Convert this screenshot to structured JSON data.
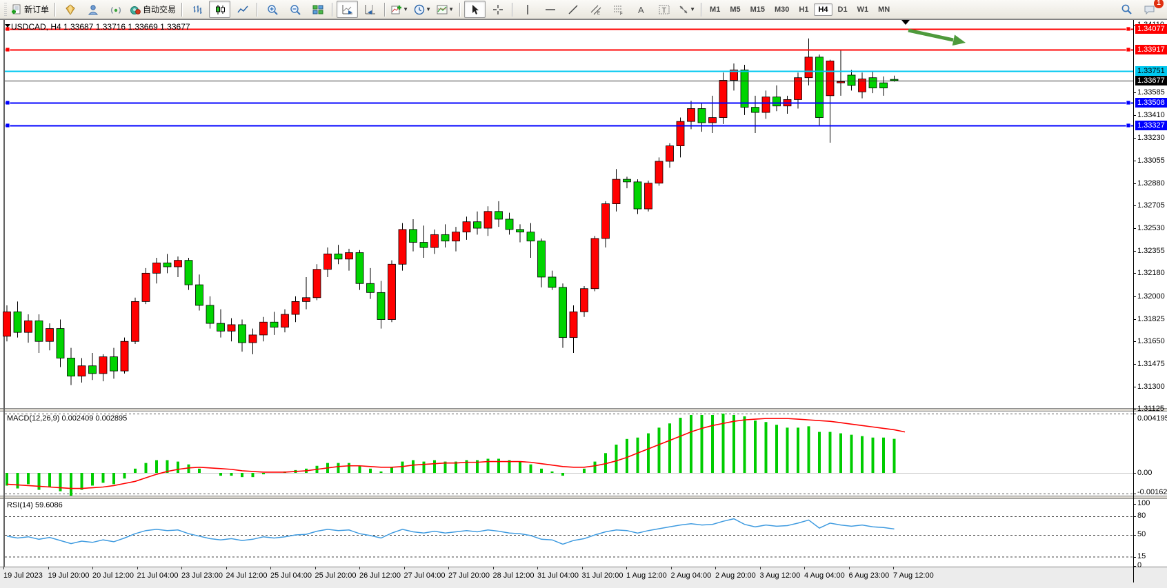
{
  "toolbar": {
    "new_order_label": "新订单",
    "autotrading_label": "自动交易",
    "timeframes": [
      "M1",
      "M5",
      "M15",
      "M30",
      "H1",
      "H4",
      "D1",
      "W1",
      "MN"
    ],
    "active_timeframe": "H4",
    "notification_count": "1"
  },
  "chart": {
    "title": "USDCAD, H4  1.33687 1.33716 1.33669 1.33677",
    "symbol": "USDCAD",
    "period": "H4",
    "open": "1.33687",
    "high": "1.33716",
    "low": "1.33669",
    "close": "1.33677"
  },
  "indicators": {
    "macd_label": "MACD(12,26,9) 0.002409 0.002895",
    "macd_max": "0.004195",
    "macd_zero": "0.00",
    "macd_min": "-0.001625",
    "rsi_label": "RSI(14) 59.6086"
  },
  "colors": {
    "up_candle": "#ff0000",
    "down_candle": "#00d400",
    "wick": "#000000",
    "resistance_line": "#ff0000",
    "cyan_line": "#00c8f0",
    "support_line": "#0000ff",
    "current_price_badge": "#000000",
    "macd_histogram": "#00cc00",
    "macd_signal": "#ff0000",
    "rsi_line": "#3f9be0",
    "annotation_arrow": "#4e9a3c"
  },
  "chart_data": {
    "type": "candlestick",
    "title": "USDCAD H4",
    "price_range": [
      1.3113,
      1.3415
    ],
    "price_ticks": [
      1.3411,
      1.33585,
      1.3341,
      1.3323,
      1.33055,
      1.3288,
      1.32705,
      1.3253,
      1.32355,
      1.3218,
      1.32,
      1.31825,
      1.3165,
      1.31475,
      1.313,
      1.31125
    ],
    "horizontal_lines": [
      {
        "price": 1.34077,
        "color": "#ff0000",
        "badge_fg": "#ffffff",
        "handles": true
      },
      {
        "price": 1.33917,
        "color": "#ff0000",
        "badge_fg": "#ffffff",
        "handles": true
      },
      {
        "price": 1.33751,
        "color": "#00c8f0",
        "badge_fg": "#000000",
        "handles": false
      },
      {
        "price": 1.33508,
        "color": "#0000ff",
        "badge_fg": "#ffffff",
        "handles": true
      },
      {
        "price": 1.33327,
        "color": "#0000ff",
        "badge_fg": "#ffffff",
        "handles": true
      }
    ],
    "current_price": 1.33677,
    "bars": [
      [
        1.3169,
        1.3193,
        1.3165,
        1.3188
      ],
      [
        1.3188,
        1.3196,
        1.3168,
        1.3172
      ],
      [
        1.3172,
        1.3186,
        1.3164,
        1.3181
      ],
      [
        1.3181,
        1.3186,
        1.3156,
        1.3165
      ],
      [
        1.3165,
        1.3179,
        1.3158,
        1.3175
      ],
      [
        1.3175,
        1.3182,
        1.3145,
        1.3152
      ],
      [
        1.3152,
        1.316,
        1.3131,
        1.3138
      ],
      [
        1.3138,
        1.3152,
        1.3133,
        1.3146
      ],
      [
        1.3146,
        1.3156,
        1.3135,
        1.314
      ],
      [
        1.314,
        1.3155,
        1.3134,
        1.3153
      ],
      [
        1.3153,
        1.316,
        1.3136,
        1.3142
      ],
      [
        1.3142,
        1.3168,
        1.314,
        1.3165
      ],
      [
        1.3165,
        1.3199,
        1.3163,
        1.3196
      ],
      [
        1.3196,
        1.3222,
        1.3194,
        1.3218
      ],
      [
        1.3218,
        1.323,
        1.321,
        1.3226
      ],
      [
        1.3226,
        1.3233,
        1.3218,
        1.3223
      ],
      [
        1.3223,
        1.3231,
        1.3215,
        1.3228
      ],
      [
        1.3228,
        1.323,
        1.3205,
        1.3209
      ],
      [
        1.3209,
        1.3217,
        1.3189,
        1.3193
      ],
      [
        1.3193,
        1.32,
        1.3175,
        1.3179
      ],
      [
        1.3179,
        1.319,
        1.3168,
        1.3173
      ],
      [
        1.3173,
        1.3183,
        1.3165,
        1.3178
      ],
      [
        1.3178,
        1.3182,
        1.3157,
        1.3164
      ],
      [
        1.3164,
        1.3175,
        1.3155,
        1.317
      ],
      [
        1.317,
        1.3184,
        1.3165,
        1.318
      ],
      [
        1.318,
        1.3188,
        1.317,
        1.3176
      ],
      [
        1.3176,
        1.319,
        1.3172,
        1.3186
      ],
      [
        1.3186,
        1.32,
        1.318,
        1.3196
      ],
      [
        1.3196,
        1.3215,
        1.319,
        1.3199
      ],
      [
        1.3199,
        1.3225,
        1.3197,
        1.3221
      ],
      [
        1.3221,
        1.3238,
        1.3215,
        1.3233
      ],
      [
        1.3233,
        1.324,
        1.3225,
        1.3229
      ],
      [
        1.3229,
        1.3237,
        1.322,
        1.3234
      ],
      [
        1.3234,
        1.3236,
        1.3205,
        1.321
      ],
      [
        1.321,
        1.3222,
        1.3198,
        1.3203
      ],
      [
        1.3203,
        1.3212,
        1.3175,
        1.3182
      ],
      [
        1.3182,
        1.3228,
        1.318,
        1.3225
      ],
      [
        1.3225,
        1.3257,
        1.322,
        1.3252
      ],
      [
        1.3252,
        1.326,
        1.3235,
        1.3242
      ],
      [
        1.3242,
        1.3255,
        1.323,
        1.3238
      ],
      [
        1.3238,
        1.3252,
        1.3233,
        1.3248
      ],
      [
        1.3248,
        1.3256,
        1.3238,
        1.3243
      ],
      [
        1.3243,
        1.3254,
        1.3235,
        1.325
      ],
      [
        1.325,
        1.3262,
        1.3244,
        1.3258
      ],
      [
        1.3258,
        1.3266,
        1.3248,
        1.3253
      ],
      [
        1.3253,
        1.327,
        1.3247,
        1.3266
      ],
      [
        1.3266,
        1.3274,
        1.3254,
        1.326
      ],
      [
        1.326,
        1.3265,
        1.3248,
        1.3252
      ],
      [
        1.3252,
        1.3256,
        1.3242,
        1.325
      ],
      [
        1.325,
        1.3257,
        1.323,
        1.3243
      ],
      [
        1.3243,
        1.3245,
        1.3207,
        1.3215
      ],
      [
        1.3215,
        1.322,
        1.3205,
        1.3207
      ],
      [
        1.3207,
        1.321,
        1.316,
        1.3168
      ],
      [
        1.3168,
        1.3193,
        1.3156,
        1.3188
      ],
      [
        1.3188,
        1.3208,
        1.3184,
        1.3206
      ],
      [
        1.3206,
        1.3247,
        1.3204,
        1.3245
      ],
      [
        1.3245,
        1.3274,
        1.3238,
        1.3272
      ],
      [
        1.3272,
        1.3299,
        1.3266,
        1.3291
      ],
      [
        1.3291,
        1.3293,
        1.3284,
        1.3289
      ],
      [
        1.3289,
        1.3291,
        1.3264,
        1.3268
      ],
      [
        1.3268,
        1.329,
        1.3266,
        1.3288
      ],
      [
        1.3288,
        1.3308,
        1.3286,
        1.3305
      ],
      [
        1.3305,
        1.3319,
        1.33,
        1.3317
      ],
      [
        1.3317,
        1.3339,
        1.3308,
        1.3336
      ],
      [
        1.3336,
        1.3352,
        1.333,
        1.3346
      ],
      [
        1.3346,
        1.335,
        1.3328,
        1.3335
      ],
      [
        1.3335,
        1.3356,
        1.3327,
        1.3339
      ],
      [
        1.3339,
        1.3374,
        1.3334,
        1.3368
      ],
      [
        1.3368,
        1.3381,
        1.336,
        1.3376
      ],
      [
        1.3376,
        1.338,
        1.3341,
        1.3347
      ],
      [
        1.3347,
        1.3356,
        1.3327,
        1.3343
      ],
      [
        1.3343,
        1.336,
        1.3338,
        1.3355
      ],
      [
        1.3355,
        1.3364,
        1.3344,
        1.3348
      ],
      [
        1.3348,
        1.3356,
        1.3342,
        1.3353
      ],
      [
        1.3353,
        1.3374,
        1.3346,
        1.337
      ],
      [
        1.337,
        1.34005,
        1.3364,
        1.3386
      ],
      [
        1.3386,
        1.3388,
        1.3333,
        1.3339
      ],
      [
        1.3356,
        1.3384,
        1.33195,
        1.3383
      ],
      [
        1.3366,
        1.3392,
        1.3356,
        1.3367
      ],
      [
        1.3372,
        1.3376,
        1.336,
        1.3364
      ],
      [
        1.3359,
        1.3374,
        1.3354,
        1.3369
      ],
      [
        1.337,
        1.3375,
        1.3358,
        1.3362
      ],
      [
        1.3366,
        1.3371,
        1.3356,
        1.3362
      ],
      [
        1.33687,
        1.33716,
        1.33669,
        1.33677
      ]
    ],
    "macd": {
      "params": "12,26,9",
      "current_main": 0.002409,
      "current_signal": 0.002895,
      "scale": [
        -0.001625,
        0.004195
      ],
      "hist_x1e4": [
        -9,
        -11,
        -8,
        -12,
        -10,
        -13,
        -16.25,
        -12,
        -9,
        -7,
        -8,
        -4,
        3,
        7,
        9,
        9,
        8,
        6,
        3,
        0,
        -2,
        -2,
        -3,
        -3,
        -1,
        0,
        1,
        2,
        3,
        5,
        7,
        7,
        7,
        5,
        3,
        1,
        4,
        8,
        9,
        8,
        9,
        8,
        8,
        9,
        9,
        10,
        10,
        9,
        8,
        6,
        3,
        1,
        -2,
        0,
        3,
        8,
        14,
        20,
        24,
        25,
        28,
        32,
        35,
        39,
        41,
        41,
        41,
        41.95,
        41,
        40,
        37,
        36,
        34,
        32,
        32,
        33,
        29,
        29,
        28,
        27,
        26,
        25,
        25,
        24.09
      ],
      "signal_x1e4": [
        -8,
        -8.5,
        -9,
        -9.5,
        -10,
        -10.5,
        -11,
        -11,
        -10.5,
        -10,
        -9,
        -7.5,
        -6,
        -3.5,
        -1,
        1,
        2.5,
        3.5,
        4,
        3.5,
        3,
        2.5,
        1.5,
        1,
        0.5,
        0.5,
        0.5,
        1,
        1.5,
        2.5,
        3.5,
        4.5,
        5,
        5,
        4.5,
        4,
        4,
        4.5,
        5.5,
        6,
        6.5,
        7,
        7,
        7.5,
        7.5,
        8,
        8,
        8,
        8,
        7.5,
        6.5,
        5.5,
        4.5,
        4,
        4,
        5,
        6.5,
        8.5,
        11,
        14,
        17,
        20,
        23,
        26,
        29,
        31.5,
        33.5,
        35,
        36.5,
        37.5,
        38,
        38.5,
        38.5,
        38.5,
        38,
        37.5,
        37,
        36.5,
        35.5,
        34.5,
        33.5,
        32.5,
        31.5,
        30.5,
        28.95
      ]
    },
    "rsi": {
      "period": 14,
      "current": 59.6086,
      "levels": [
        80,
        50,
        15
      ],
      "scale": [
        0,
        100
      ],
      "values": [
        48,
        45,
        47,
        43,
        46,
        41,
        36,
        40,
        38,
        42,
        39,
        45,
        52,
        57,
        59,
        57,
        58,
        52,
        48,
        44,
        42,
        44,
        41,
        43,
        47,
        45,
        47,
        50,
        51,
        56,
        59,
        57,
        58,
        52,
        49,
        45,
        53,
        59,
        55,
        53,
        56,
        53,
        55,
        57,
        55,
        58,
        56,
        53,
        52,
        49,
        43,
        42,
        35,
        41,
        44,
        50,
        55,
        58,
        57,
        53,
        57,
        60,
        63,
        66,
        68,
        66,
        67,
        72,
        76,
        67,
        63,
        66,
        64,
        65,
        69,
        74,
        61,
        69,
        66,
        64,
        66,
        63,
        62,
        59.61
      ]
    },
    "rsi_axis_labels": [
      [
        100,
        "100"
      ],
      [
        80,
        "80"
      ],
      [
        50,
        "50"
      ],
      [
        15,
        "15"
      ],
      [
        0,
        "0"
      ]
    ],
    "time_labels": [
      "19 Jul 2023",
      "19 Jul 20:00",
      "20 Jul 12:00",
      "21 Jul 04:00",
      "23 Jul 23:00",
      "24 Jul 12:00",
      "25 Jul 04:00",
      "25 Jul 20:00",
      "26 Jul 12:00",
      "27 Jul 04:00",
      "27 Jul 20:00",
      "28 Jul 12:00",
      "31 Jul 04:00",
      "31 Jul 20:00",
      "1 Aug 12:00",
      "2 Aug 04:00",
      "2 Aug 20:00",
      "3 Aug 12:00",
      "4 Aug 04:00",
      "6 Aug 23:00",
      "7 Aug 12:00"
    ],
    "annotations": [
      {
        "type": "arrow",
        "label": "green-down-right-arrow"
      },
      {
        "type": "marker",
        "label": "black-down-triangle"
      }
    ]
  }
}
